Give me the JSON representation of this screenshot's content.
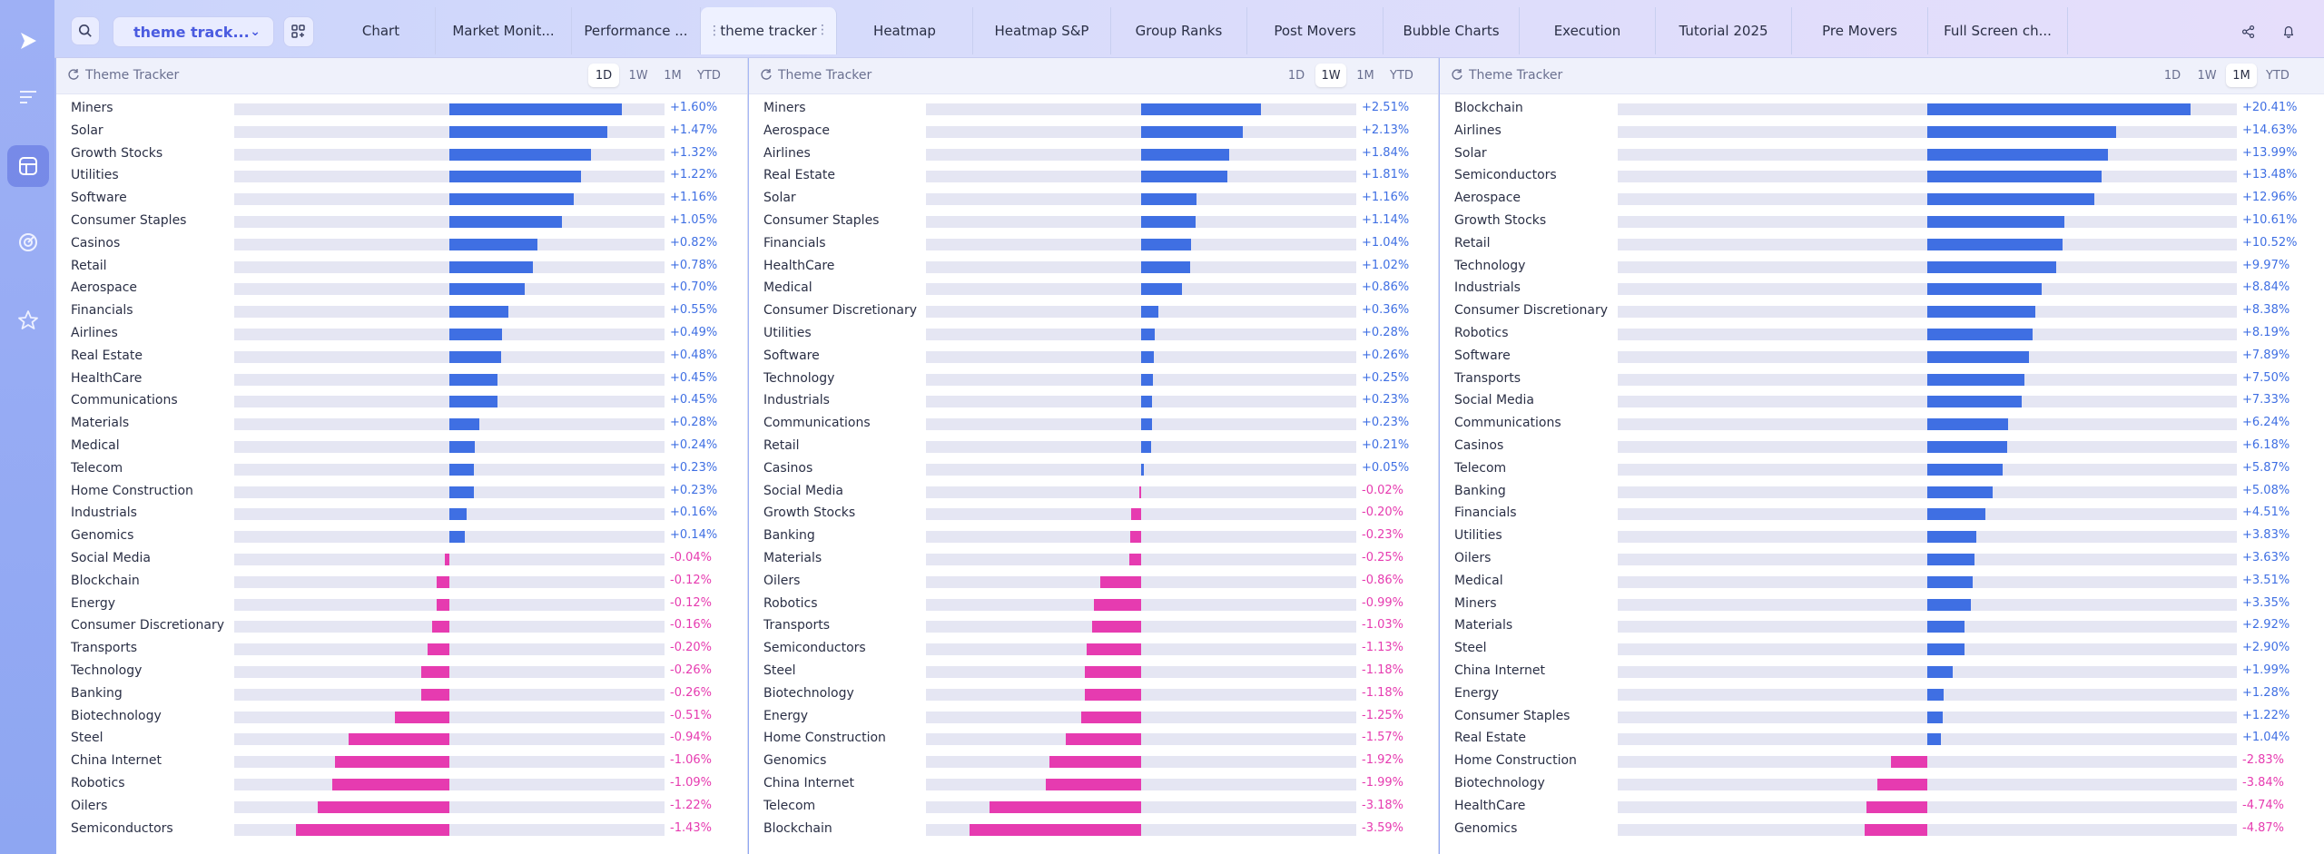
{
  "layout_select": {
    "label": "theme track...",
    "chevron_icon": "chevron-down-icon"
  },
  "tabs": [
    {
      "label": "Chart"
    },
    {
      "label": "Market Monit..."
    },
    {
      "label": "Performance ..."
    },
    {
      "label": "theme tracker",
      "active": true
    },
    {
      "label": "Heatmap"
    },
    {
      "label": "Heatmap S&P"
    },
    {
      "label": "Group Ranks"
    },
    {
      "label": "Post Movers"
    },
    {
      "label": "Bubble Charts"
    },
    {
      "label": "Execution"
    },
    {
      "label": "Tutorial 2025"
    },
    {
      "label": "Pre Movers"
    },
    {
      "label": "Full Screen ch..."
    }
  ],
  "rail_icons": [
    "logo-icon",
    "list-icon",
    "layout-icon",
    "radar-icon",
    "star-icon"
  ],
  "colors": {
    "positive": "#3f6fe3",
    "negative": "#e63bb0",
    "track": "#e5e6f3"
  },
  "panels": [
    {
      "title": "Theme Tracker",
      "periods": [
        "1D",
        "1W",
        "1M",
        "YTD"
      ],
      "active_period": "1D",
      "chart_data": {
        "type": "bar",
        "orientation": "horizontal",
        "xlim": [
          -2.0,
          2.0
        ],
        "rows": [
          {
            "name": "Miners",
            "value": 1.6,
            "label": "+1.60%"
          },
          {
            "name": "Solar",
            "value": 1.47,
            "label": "+1.47%"
          },
          {
            "name": "Growth Stocks",
            "value": 1.32,
            "label": "+1.32%"
          },
          {
            "name": "Utilities",
            "value": 1.22,
            "label": "+1.22%"
          },
          {
            "name": "Software",
            "value": 1.16,
            "label": "+1.16%"
          },
          {
            "name": "Consumer Staples",
            "value": 1.05,
            "label": "+1.05%"
          },
          {
            "name": "Casinos",
            "value": 0.82,
            "label": "+0.82%"
          },
          {
            "name": "Retail",
            "value": 0.78,
            "label": "+0.78%"
          },
          {
            "name": "Aerospace",
            "value": 0.7,
            "label": "+0.70%"
          },
          {
            "name": "Financials",
            "value": 0.55,
            "label": "+0.55%"
          },
          {
            "name": "Airlines",
            "value": 0.49,
            "label": "+0.49%"
          },
          {
            "name": "Real Estate",
            "value": 0.48,
            "label": "+0.48%"
          },
          {
            "name": "HealthCare",
            "value": 0.45,
            "label": "+0.45%"
          },
          {
            "name": "Communications",
            "value": 0.45,
            "label": "+0.45%"
          },
          {
            "name": "Materials",
            "value": 0.28,
            "label": "+0.28%"
          },
          {
            "name": "Medical",
            "value": 0.24,
            "label": "+0.24%"
          },
          {
            "name": "Telecom",
            "value": 0.23,
            "label": "+0.23%"
          },
          {
            "name": "Home Construction",
            "value": 0.23,
            "label": "+0.23%"
          },
          {
            "name": "Industrials",
            "value": 0.16,
            "label": "+0.16%"
          },
          {
            "name": "Genomics",
            "value": 0.14,
            "label": "+0.14%"
          },
          {
            "name": "Social Media",
            "value": -0.04,
            "label": "-0.04%"
          },
          {
            "name": "Blockchain",
            "value": -0.12,
            "label": "-0.12%"
          },
          {
            "name": "Energy",
            "value": -0.12,
            "label": "-0.12%"
          },
          {
            "name": "Consumer Discretionary",
            "value": -0.16,
            "label": "-0.16%"
          },
          {
            "name": "Transports",
            "value": -0.2,
            "label": "-0.20%"
          },
          {
            "name": "Technology",
            "value": -0.26,
            "label": "-0.26%"
          },
          {
            "name": "Banking",
            "value": -0.26,
            "label": "-0.26%"
          },
          {
            "name": "Biotechnology",
            "value": -0.51,
            "label": "-0.51%"
          },
          {
            "name": "Steel",
            "value": -0.94,
            "label": "-0.94%"
          },
          {
            "name": "China Internet",
            "value": -1.06,
            "label": "-1.06%"
          },
          {
            "name": "Robotics",
            "value": -1.09,
            "label": "-1.09%"
          },
          {
            "name": "Oilers",
            "value": -1.22,
            "label": "-1.22%"
          },
          {
            "name": "Semiconductors",
            "value": -1.43,
            "label": "-1.43%"
          }
        ]
      }
    },
    {
      "title": "Theme Tracker",
      "periods": [
        "1D",
        "1W",
        "1M",
        "YTD"
      ],
      "active_period": "1W",
      "chart_data": {
        "type": "bar",
        "orientation": "horizontal",
        "xlim": [
          -4.5,
          4.5
        ],
        "rows": [
          {
            "name": "Miners",
            "value": 2.51,
            "label": "+2.51%"
          },
          {
            "name": "Aerospace",
            "value": 2.13,
            "label": "+2.13%"
          },
          {
            "name": "Airlines",
            "value": 1.84,
            "label": "+1.84%"
          },
          {
            "name": "Real Estate",
            "value": 1.81,
            "label": "+1.81%"
          },
          {
            "name": "Solar",
            "value": 1.16,
            "label": "+1.16%"
          },
          {
            "name": "Consumer Staples",
            "value": 1.14,
            "label": "+1.14%"
          },
          {
            "name": "Financials",
            "value": 1.04,
            "label": "+1.04%"
          },
          {
            "name": "HealthCare",
            "value": 1.02,
            "label": "+1.02%"
          },
          {
            "name": "Medical",
            "value": 0.86,
            "label": "+0.86%"
          },
          {
            "name": "Consumer Discretionary",
            "value": 0.36,
            "label": "+0.36%"
          },
          {
            "name": "Utilities",
            "value": 0.28,
            "label": "+0.28%"
          },
          {
            "name": "Software",
            "value": 0.26,
            "label": "+0.26%"
          },
          {
            "name": "Technology",
            "value": 0.25,
            "label": "+0.25%"
          },
          {
            "name": "Industrials",
            "value": 0.23,
            "label": "+0.23%"
          },
          {
            "name": "Communications",
            "value": 0.23,
            "label": "+0.23%"
          },
          {
            "name": "Retail",
            "value": 0.21,
            "label": "+0.21%"
          },
          {
            "name": "Casinos",
            "value": 0.05,
            "label": "+0.05%"
          },
          {
            "name": "Social Media",
            "value": -0.02,
            "label": "-0.02%"
          },
          {
            "name": "Growth Stocks",
            "value": -0.2,
            "label": "-0.20%"
          },
          {
            "name": "Banking",
            "value": -0.23,
            "label": "-0.23%"
          },
          {
            "name": "Materials",
            "value": -0.25,
            "label": "-0.25%"
          },
          {
            "name": "Oilers",
            "value": -0.86,
            "label": "-0.86%"
          },
          {
            "name": "Robotics",
            "value": -0.99,
            "label": "-0.99%"
          },
          {
            "name": "Transports",
            "value": -1.03,
            "label": "-1.03%"
          },
          {
            "name": "Semiconductors",
            "value": -1.13,
            "label": "-1.13%"
          },
          {
            "name": "Steel",
            "value": -1.18,
            "label": "-1.18%"
          },
          {
            "name": "Biotechnology",
            "value": -1.18,
            "label": "-1.18%"
          },
          {
            "name": "Energy",
            "value": -1.25,
            "label": "-1.25%"
          },
          {
            "name": "Home Construction",
            "value": -1.57,
            "label": "-1.57%"
          },
          {
            "name": "Genomics",
            "value": -1.92,
            "label": "-1.92%"
          },
          {
            "name": "China Internet",
            "value": -1.99,
            "label": "-1.99%"
          },
          {
            "name": "Telecom",
            "value": -3.18,
            "label": "-3.18%"
          },
          {
            "name": "Blockchain",
            "value": -3.59,
            "label": "-3.59%"
          }
        ]
      }
    },
    {
      "title": "Theme Tracker",
      "periods": [
        "1D",
        "1W",
        "1M",
        "YTD"
      ],
      "active_period": "1M",
      "chart_data": {
        "type": "bar",
        "orientation": "horizontal",
        "xlim": [
          -24.0,
          24.0
        ],
        "rows": [
          {
            "name": "Blockchain",
            "value": 20.41,
            "label": "+20.41%"
          },
          {
            "name": "Airlines",
            "value": 14.63,
            "label": "+14.63%"
          },
          {
            "name": "Solar",
            "value": 13.99,
            "label": "+13.99%"
          },
          {
            "name": "Semiconductors",
            "value": 13.48,
            "label": "+13.48%"
          },
          {
            "name": "Aerospace",
            "value": 12.96,
            "label": "+12.96%"
          },
          {
            "name": "Growth Stocks",
            "value": 10.61,
            "label": "+10.61%"
          },
          {
            "name": "Retail",
            "value": 10.52,
            "label": "+10.52%"
          },
          {
            "name": "Technology",
            "value": 9.97,
            "label": "+9.97%"
          },
          {
            "name": "Industrials",
            "value": 8.84,
            "label": "+8.84%"
          },
          {
            "name": "Consumer Discretionary",
            "value": 8.38,
            "label": "+8.38%"
          },
          {
            "name": "Robotics",
            "value": 8.19,
            "label": "+8.19%"
          },
          {
            "name": "Software",
            "value": 7.89,
            "label": "+7.89%"
          },
          {
            "name": "Transports",
            "value": 7.5,
            "label": "+7.50%"
          },
          {
            "name": "Social Media",
            "value": 7.33,
            "label": "+7.33%"
          },
          {
            "name": "Communications",
            "value": 6.24,
            "label": "+6.24%"
          },
          {
            "name": "Casinos",
            "value": 6.18,
            "label": "+6.18%"
          },
          {
            "name": "Telecom",
            "value": 5.87,
            "label": "+5.87%"
          },
          {
            "name": "Banking",
            "value": 5.08,
            "label": "+5.08%"
          },
          {
            "name": "Financials",
            "value": 4.51,
            "label": "+4.51%"
          },
          {
            "name": "Utilities",
            "value": 3.83,
            "label": "+3.83%"
          },
          {
            "name": "Oilers",
            "value": 3.63,
            "label": "+3.63%"
          },
          {
            "name": "Medical",
            "value": 3.51,
            "label": "+3.51%"
          },
          {
            "name": "Miners",
            "value": 3.35,
            "label": "+3.35%"
          },
          {
            "name": "Materials",
            "value": 2.92,
            "label": "+2.92%"
          },
          {
            "name": "Steel",
            "value": 2.9,
            "label": "+2.90%"
          },
          {
            "name": "China Internet",
            "value": 1.99,
            "label": "+1.99%"
          },
          {
            "name": "Energy",
            "value": 1.28,
            "label": "+1.28%"
          },
          {
            "name": "Consumer Staples",
            "value": 1.22,
            "label": "+1.22%"
          },
          {
            "name": "Real Estate",
            "value": 1.04,
            "label": "+1.04%"
          },
          {
            "name": "Home Construction",
            "value": -2.83,
            "label": "-2.83%"
          },
          {
            "name": "Biotechnology",
            "value": -3.84,
            "label": "-3.84%"
          },
          {
            "name": "HealthCare",
            "value": -4.74,
            "label": "-4.74%"
          },
          {
            "name": "Genomics",
            "value": -4.87,
            "label": "-4.87%"
          }
        ]
      }
    }
  ]
}
